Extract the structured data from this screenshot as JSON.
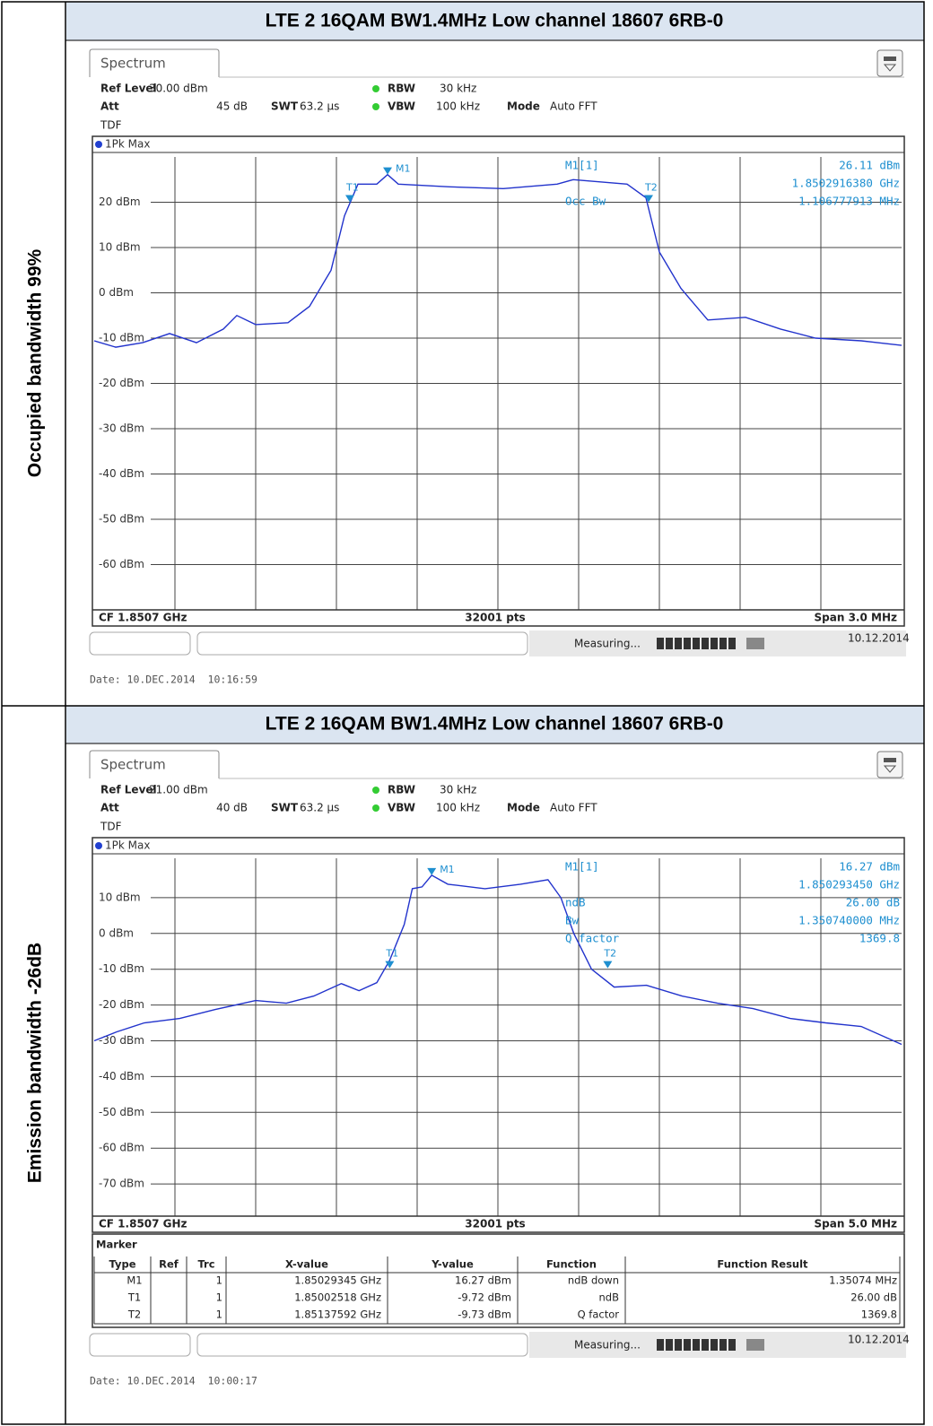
{
  "rows": [
    {
      "label": "Occupied bandwidth 99%",
      "title": "LTE 2 16QAM BW1.4MHz Low channel 18607 6RB-0",
      "tab": "Spectrum",
      "settings": {
        "ref_level": [
          "Ref Level",
          "30.00 dBm"
        ],
        "att": [
          "Att",
          "45 dB"
        ],
        "tdf": "TDF",
        "rbw": [
          "RBW",
          "30 kHz"
        ],
        "swt": [
          "SWT",
          "63.2 µs"
        ],
        "vbw": [
          "VBW",
          "100 kHz"
        ],
        "mode": [
          "Mode",
          "Auto FFT"
        ]
      },
      "trace_name": "1Pk Max",
      "readout": [
        {
          "label": "M1[1]",
          "value": "26.11 dBm"
        },
        {
          "value": "1.8502916380 GHz"
        },
        {
          "label": "Occ Bw",
          "value": "1.106777913 MHz"
        }
      ],
      "chart": {
        "type": "line",
        "color": "#2233cc",
        "xlim": [
          1849.2,
          1852.2
        ],
        "xgrid": 10,
        "ylim": [
          -70,
          30
        ],
        "yticks": [
          {
            "value": 20,
            "label": "20 dBm"
          },
          {
            "value": 10,
            "label": "10 dBm"
          },
          {
            "value": 0,
            "label": "0 dBm"
          },
          {
            "value": -10,
            "label": "-10 dBm"
          },
          {
            "value": -20,
            "label": "-20 dBm"
          },
          {
            "value": -30,
            "label": "-30 dBm"
          },
          {
            "value": -40,
            "label": "-40 dBm"
          },
          {
            "value": -50,
            "label": "-50 dBm"
          },
          {
            "value": -60,
            "label": "-60 dBm"
          }
        ],
        "x": [
          1849.2,
          1849.28,
          1849.38,
          1849.48,
          1849.58,
          1849.68,
          1849.73,
          1849.8,
          1849.92,
          1850.0,
          1850.08,
          1850.13,
          1850.18,
          1850.25,
          1850.29,
          1850.33,
          1850.52,
          1850.72,
          1850.92,
          1850.98,
          1851.18,
          1851.25,
          1851.3,
          1851.38,
          1851.48,
          1851.62,
          1851.75,
          1851.88,
          1852.05,
          1852.2
        ],
        "values": [
          -10.6,
          -12,
          -11,
          -9,
          -11,
          -8,
          -5,
          -7,
          -6.6,
          -3,
          5,
          17,
          24,
          24,
          26.1,
          24,
          23.4,
          23,
          24,
          25,
          24,
          21,
          9,
          1,
          -6,
          -5.4,
          -8,
          -10,
          -10.6,
          -11.6
        ],
        "markers": [
          {
            "name": "M1",
            "x": 1850.29,
            "value": 26.11
          },
          {
            "name": "T1",
            "x": 1850.15,
            "value": 20
          },
          {
            "name": "T2",
            "x": 1851.26,
            "value": 20
          }
        ]
      },
      "footer": {
        "cf": "CF 1.8507 GHz",
        "pts": "32001 pts",
        "span": "Span 3.0 MHz"
      },
      "status": {
        "state": "Measuring...",
        "date": "10.12.2014"
      },
      "date": "Date: 10.DEC.2014  10:16:59"
    },
    {
      "label": "Emission bandwidth -26dB",
      "title": "LTE 2 16QAM BW1.4MHz Low channel 18607 6RB-0",
      "tab": "Spectrum",
      "settings": {
        "ref_level": [
          "Ref Level",
          "21.00 dBm"
        ],
        "att": [
          "Att",
          "40 dB"
        ],
        "tdf": "TDF",
        "rbw": [
          "RBW",
          "30 kHz"
        ],
        "swt": [
          "SWT",
          "63.2 µs"
        ],
        "vbw": [
          "VBW",
          "100 kHz"
        ],
        "mode": [
          "Mode",
          "Auto FFT"
        ]
      },
      "trace_name": "1Pk Max",
      "readout": [
        {
          "label": "M1[1]",
          "value": "16.27 dBm"
        },
        {
          "value": "1.850293450 GHz"
        },
        {
          "label": "ndB",
          "value": "26.00 dB"
        },
        {
          "label": "Bw",
          "value": "1.350740000 MHz"
        },
        {
          "label": "Q factor",
          "value": "1369.8"
        }
      ],
      "chart": {
        "type": "line",
        "color": "#2233cc",
        "xlim": [
          1848.2,
          1853.2
        ],
        "xgrid": 10,
        "ylim": [
          -79,
          21
        ],
        "yticks": [
          {
            "value": 10,
            "label": "10 dBm"
          },
          {
            "value": 0,
            "label": "0 dBm"
          },
          {
            "value": -10,
            "label": "-10 dBm"
          },
          {
            "value": -20,
            "label": "-20 dBm"
          },
          {
            "value": -30,
            "label": "-30 dBm"
          },
          {
            "value": -40,
            "label": "-40 dBm"
          },
          {
            "value": -50,
            "label": "-50 dBm"
          },
          {
            "value": -60,
            "label": "-60 dBm"
          },
          {
            "value": -70,
            "label": "-70 dBm"
          }
        ],
        "x": [
          1848.2,
          1848.34,
          1848.51,
          1848.73,
          1848.95,
          1849.2,
          1849.39,
          1849.56,
          1849.73,
          1849.84,
          1849.95,
          1850.03,
          1850.12,
          1850.17,
          1850.23,
          1850.29,
          1850.39,
          1850.62,
          1850.84,
          1851.01,
          1851.09,
          1851.17,
          1851.28,
          1851.42,
          1851.62,
          1851.84,
          1852.06,
          1852.28,
          1852.51,
          1852.73,
          1852.95,
          1853.2
        ],
        "values": [
          -30,
          -27.5,
          -25,
          -23.75,
          -21.25,
          -18.75,
          -19.5,
          -17.5,
          -14,
          -16,
          -13.75,
          -7.5,
          2.5,
          12.5,
          13,
          16.27,
          13.75,
          12.5,
          13.75,
          15,
          10,
          0,
          -10,
          -15,
          -14.5,
          -17.5,
          -19.5,
          -21,
          -23.75,
          -25,
          -26,
          -31
        ],
        "markers": [
          {
            "name": "M1",
            "x": 1850.29,
            "value": 16.27
          },
          {
            "name": "T1",
            "x": 1850.03,
            "value": -9.72
          },
          {
            "name": "T2",
            "x": 1851.38,
            "value": -9.73
          }
        ]
      },
      "footer": {
        "cf": "CF 1.8507 GHz",
        "pts": "32001 pts",
        "span": "Span 5.0 MHz"
      },
      "marker_table": {
        "title": "Marker",
        "columns": [
          "Type",
          "Ref",
          "Trc",
          "X-value",
          "Y-value",
          "Function",
          "Function Result"
        ],
        "rows": [
          {
            "type": "M1",
            "trc": 1,
            "x": "1.85029345 GHz",
            "y": "16.27 dBm",
            "function": "ndB down",
            "result": "1.35074 MHz"
          },
          {
            "type": "T1",
            "trc": 1,
            "x": "1.85002518 GHz",
            "y": "-9.72 dBm",
            "function": "ndB",
            "result": "26.00 dB"
          },
          {
            "type": "T2",
            "trc": 1,
            "x": "1.85137592 GHz",
            "y": "-9.73 dBm",
            "function": "Q factor",
            "result": "1369.8"
          }
        ]
      },
      "status": {
        "state": "Measuring...",
        "date": "10.12.2014"
      },
      "date": "Date: 10.DEC.2014  10:00:17"
    }
  ]
}
